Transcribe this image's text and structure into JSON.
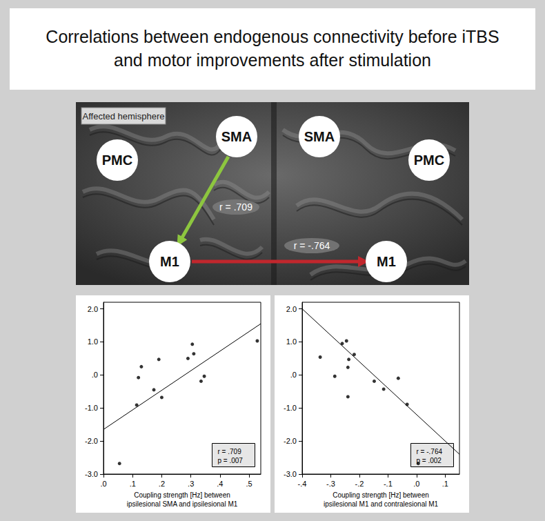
{
  "title": [
    "Correlations between endogenous connectivity before iTBS",
    "and motor improvements after stimulation"
  ],
  "diagram": {
    "label": "Affected hemisphere",
    "nodes": [
      "SMA",
      "PMC",
      "M1",
      "SMA",
      "PMC",
      "M1"
    ],
    "arrows": [
      {
        "label": "r = .709",
        "color": "#8dc63f"
      },
      {
        "label": "r = -.764",
        "color": "#c1272d"
      }
    ]
  },
  "chart_data": [
    {
      "type": "scatter",
      "color": "#000000",
      "x": [
        0.055,
        0.114,
        0.12,
        0.13,
        0.173,
        0.19,
        0.2,
        0.29,
        0.305,
        0.31,
        0.335,
        0.346,
        0.528
      ],
      "y": [
        -2.68,
        -0.91,
        -0.08,
        0.25,
        -0.45,
        0.47,
        -0.68,
        0.5,
        0.93,
        0.64,
        -0.19,
        -0.04,
        1.03
      ],
      "fit": {
        "x": [
          0,
          0.54
        ],
        "y": [
          -1.65,
          1.55
        ]
      },
      "xlim": [
        0,
        0.54
      ],
      "ylim": [
        -3,
        2.2
      ],
      "xticks": [
        {
          "value": 0,
          "label": ".0"
        },
        {
          "value": 0.1,
          "label": ".1"
        },
        {
          "value": 0.2,
          "label": ".2"
        },
        {
          "value": 0.3,
          "label": ".3"
        },
        {
          "value": 0.4,
          "label": ".4"
        },
        {
          "value": 0.5,
          "label": ".5"
        }
      ],
      "yticks": [
        {
          "value": -3,
          "label": "-3.0"
        },
        {
          "value": -2,
          "label": "-2.0"
        },
        {
          "value": -1,
          "label": "-1.0"
        },
        {
          "value": 0,
          "label": ".0"
        },
        {
          "value": 1,
          "label": "1.0"
        },
        {
          "value": 2,
          "label": "2.0"
        }
      ],
      "x_label": "Coupling strength [Hz] between\nipsilesional SMA and ipsilesional M1",
      "annotation": [
        "r = .709",
        "p = .007"
      ],
      "grid": false
    },
    {
      "type": "scatter",
      "color": "#000000",
      "x": [
        -0.337,
        -0.286,
        -0.26,
        -0.245,
        -0.24,
        -0.237,
        -0.24,
        -0.218,
        -0.148,
        -0.115,
        -0.064,
        -0.033,
        0.006
      ],
      "y": [
        0.54,
        -0.04,
        0.95,
        1.03,
        0.23,
        0.47,
        -0.66,
        0.62,
        -0.19,
        -0.43,
        -0.1,
        -0.89,
        -2.68
      ],
      "fit": {
        "x": [
          -0.4,
          0.15
        ],
        "y": [
          2.0,
          -2.4
        ]
      },
      "xlim": [
        -0.4,
        0.15
      ],
      "ylim": [
        -3,
        2.2
      ],
      "xticks": [
        {
          "value": -0.4,
          "label": "-.4"
        },
        {
          "value": -0.3,
          "label": "-.3"
        },
        {
          "value": -0.2,
          "label": "-.2"
        },
        {
          "value": -0.1,
          "label": "-.1"
        },
        {
          "value": 0,
          "label": ".0"
        },
        {
          "value": 0.1,
          "label": ".1"
        }
      ],
      "yticks": [
        {
          "value": -3,
          "label": "-3.0"
        },
        {
          "value": -2,
          "label": "-2.0"
        },
        {
          "value": -1,
          "label": "-1.0"
        },
        {
          "value": 0,
          "label": ".0"
        },
        {
          "value": 1,
          "label": "1.0"
        },
        {
          "value": 2,
          "label": "2.0"
        }
      ],
      "x_label": "Coupling strength [Hz] between\nipsilesional M1 and contralesional M1",
      "annotation": [
        "r = -.764",
        "p = .002"
      ],
      "grid": false
    }
  ]
}
